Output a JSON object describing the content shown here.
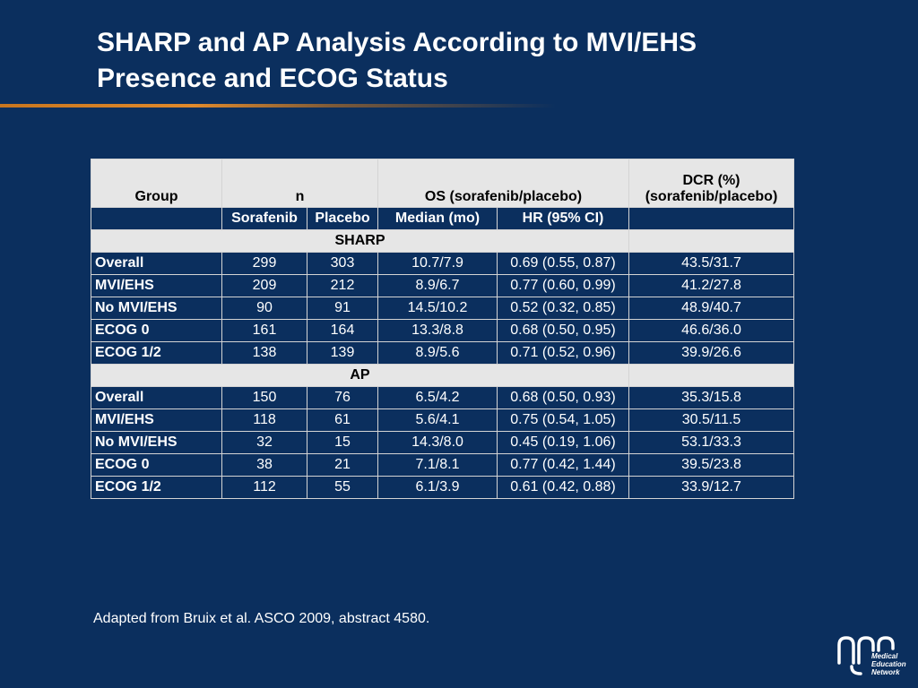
{
  "slide": {
    "title_line1": "SHARP and AP Analysis According to MVI/EHS",
    "title_line2": "Presence and ECOG Status",
    "footnote": "Adapted from Bruix et al. ASCO 2009, abstract 4580."
  },
  "table": {
    "header": {
      "group": "Group",
      "n": "n",
      "os": "OS (sorafenib/placebo)",
      "dcr_line1": "DCR (%)",
      "dcr_line2": "(sorafenib/placebo)"
    },
    "subheader": {
      "sorafenib": "Sorafenib",
      "placebo": "Placebo",
      "median": "Median (mo)",
      "hr": "HR (95% CI)"
    },
    "sections": [
      {
        "label": "SHARP",
        "rows": [
          {
            "group": "Overall",
            "sorafenib": "299",
            "placebo": "303",
            "median": "10.7/7.9",
            "hr": "0.69 (0.55, 0.87)",
            "dcr": "43.5/31.7"
          },
          {
            "group": "MVI/EHS",
            "sorafenib": "209",
            "placebo": "212",
            "median": "8.9/6.7",
            "hr": "0.77 (0.60, 0.99)",
            "dcr": "41.2/27.8"
          },
          {
            "group": "No MVI/EHS",
            "sorafenib": "90",
            "placebo": "91",
            "median": "14.5/10.2",
            "hr": "0.52 (0.32, 0.85)",
            "dcr": "48.9/40.7"
          },
          {
            "group": "ECOG 0",
            "sorafenib": "161",
            "placebo": "164",
            "median": "13.3/8.8",
            "hr": "0.68 (0.50, 0.95)",
            "dcr": "46.6/36.0"
          },
          {
            "group": "ECOG 1/2",
            "sorafenib": "138",
            "placebo": "139",
            "median": "8.9/5.6",
            "hr": "0.71 (0.52, 0.96)",
            "dcr": "39.9/26.6"
          }
        ]
      },
      {
        "label": "AP",
        "rows": [
          {
            "group": "Overall",
            "sorafenib": "150",
            "placebo": "76",
            "median": "6.5/4.2",
            "hr": "0.68 (0.50, 0.93)",
            "dcr": "35.3/15.8"
          },
          {
            "group": "MVI/EHS",
            "sorafenib": "118",
            "placebo": "61",
            "median": "5.6/4.1",
            "hr": "0.75 (0.54, 1.05)",
            "dcr": "30.5/11.5"
          },
          {
            "group": "No MVI/EHS",
            "sorafenib": "32",
            "placebo": "15",
            "median": "14.3/8.0",
            "hr": "0.45 (0.19, 1.06)",
            "dcr": "53.1/33.3"
          },
          {
            "group": "ECOG 0",
            "sorafenib": "38",
            "placebo": "21",
            "median": "7.1/8.1",
            "hr": "0.77 (0.42, 1.44)",
            "dcr": "39.5/23.8"
          },
          {
            "group": "ECOG 1/2",
            "sorafenib": "112",
            "placebo": "55",
            "median": "6.1/3.9",
            "hr": "0.61 (0.42, 0.88)",
            "dcr": "33.9/12.7"
          }
        ]
      }
    ]
  },
  "logo": {
    "icon": "medical-education-network-logo",
    "line1": "Medical",
    "line2": "Education",
    "line3": "Network"
  },
  "colors": {
    "background": "#0b2f5e",
    "header_fill": "#e6e6e6",
    "accent_bar": "#e08a2c",
    "grid": "#d4d4d4"
  }
}
